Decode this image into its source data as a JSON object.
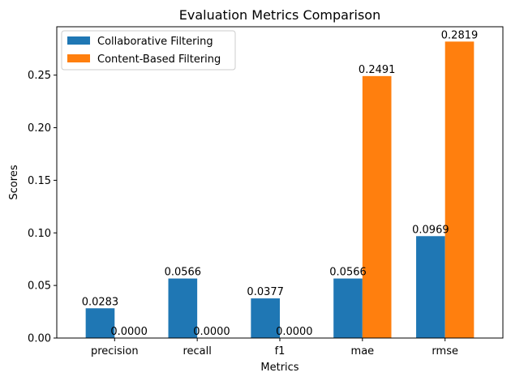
{
  "chart_data": {
    "type": "bar",
    "title": "Evaluation Metrics Comparison",
    "xlabel": "Metrics",
    "ylabel": "Scores",
    "categories": [
      "precision",
      "recall",
      "f1",
      "mae",
      "rmse"
    ],
    "series": [
      {
        "name": "Collaborative Filtering",
        "color": "#1f77b4",
        "values": [
          0.0283,
          0.0566,
          0.0377,
          0.0566,
          0.0969
        ],
        "labels": [
          "0.0283",
          "0.0566",
          "0.0377",
          "0.0566",
          "0.0969"
        ]
      },
      {
        "name": "Content-Based Filtering",
        "color": "#ff7f0e",
        "values": [
          0.0,
          0.0,
          0.0,
          0.2491,
          0.2819
        ],
        "labels": [
          "0.0000",
          "0.0000",
          "0.0000",
          "0.2491",
          "0.2819"
        ]
      }
    ],
    "ylim": [
      0,
      0.296
    ],
    "yticks": [
      0.0,
      0.05,
      0.1,
      0.15,
      0.2,
      0.25
    ],
    "ytick_labels": [
      "0.00",
      "0.05",
      "0.10",
      "0.15",
      "0.20",
      "0.25"
    ],
    "grid": false,
    "legend_position": "top-left"
  }
}
